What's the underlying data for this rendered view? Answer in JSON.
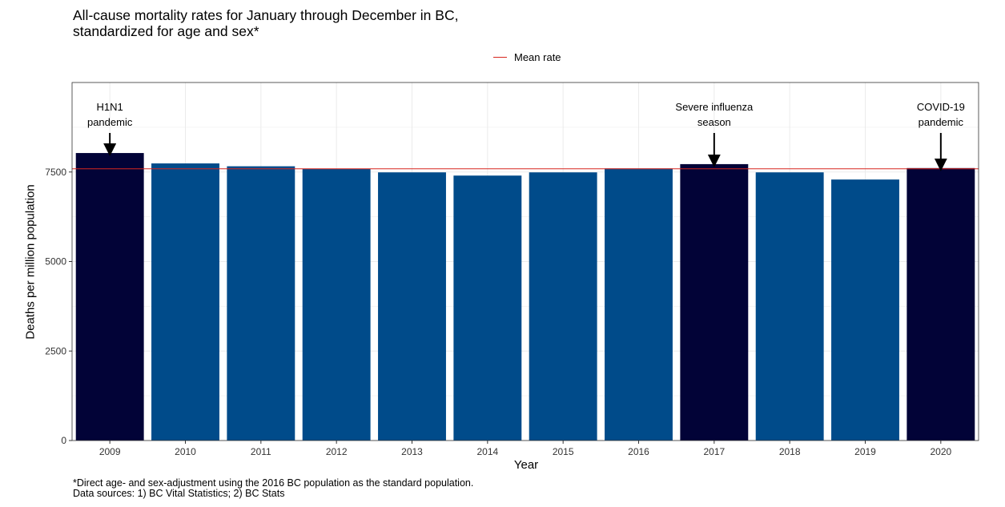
{
  "chart_data": {
    "type": "bar",
    "title_lines": [
      "All-cause mortality rates for January through December in BC,",
      "standardized for age and sex*"
    ],
    "xlabel": "Year",
    "ylabel": "Deaths per million population",
    "categories": [
      "2009",
      "2010",
      "2011",
      "2012",
      "2013",
      "2014",
      "2015",
      "2016",
      "2017",
      "2018",
      "2019",
      "2020"
    ],
    "values": [
      8030,
      7740,
      7660,
      7590,
      7490,
      7400,
      7490,
      7600,
      7720,
      7490,
      7290,
      7610
    ],
    "highlighted": [
      true,
      false,
      false,
      false,
      false,
      false,
      false,
      false,
      true,
      false,
      false,
      true
    ],
    "ylim": [
      0,
      10000
    ],
    "yticks": [
      0,
      2500,
      5000,
      7500
    ],
    "mean_rate": 7590,
    "legend": {
      "label": "Mean rate",
      "position": "top"
    },
    "colors": {
      "bar": "#004b8a",
      "highlight": "#020337",
      "mean_line": "#d7261e"
    },
    "annotations": [
      {
        "category": "2009",
        "lines": [
          "H1N1",
          "pandemic"
        ]
      },
      {
        "category": "2017",
        "lines": [
          "Severe influenza",
          "season"
        ]
      },
      {
        "category": "2020",
        "lines": [
          "COVID-19",
          "pandemic"
        ]
      }
    ],
    "grid": true
  },
  "caption_lines": [
    "*Direct age- and sex-adjustment using the 2016 BC population as the standard population.",
    "Data sources: 1) BC Vital Statistics; 2) BC Stats"
  ]
}
